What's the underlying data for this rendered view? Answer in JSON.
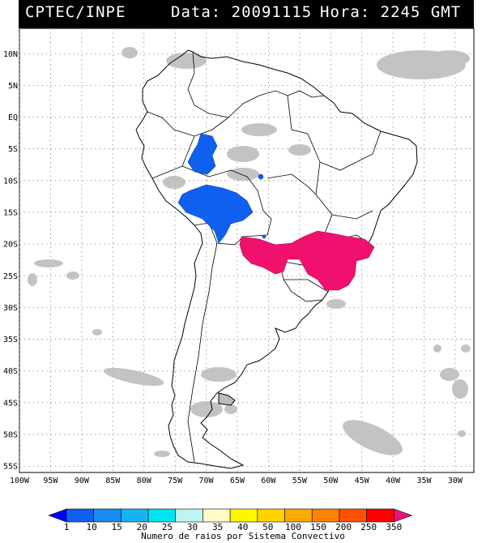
{
  "header": {
    "source": "CPTEC/INPE",
    "date_text": "Data: 20091115",
    "time_text": "Hora: 2245 GMT"
  },
  "map": {
    "lon_range": [
      -100,
      -27
    ],
    "lat_range": [
      -56,
      14
    ],
    "lat_labels": [
      "10N",
      "5N",
      "EQ",
      "5S",
      "10S",
      "15S",
      "20S",
      "25S",
      "30S",
      "35S",
      "40S",
      "45S",
      "50S",
      "55S"
    ],
    "lon_labels": [
      "100W",
      "95W",
      "90W",
      "85W",
      "80W",
      "75W",
      "70W",
      "65W",
      "60W",
      "55W",
      "50W",
      "45W",
      "40W",
      "35W",
      "30W"
    ],
    "cloud_color": "#bdbdbd",
    "systems": [
      {
        "name": "Peru-Bolivia convective system",
        "value_class": "10",
        "color": "#1060f0"
      },
      {
        "name": "Paraguay-Southeast Brazil convective system",
        "value_class": "350",
        "color": "#f0106e"
      }
    ]
  },
  "legend": {
    "ticks": [
      "1",
      "10",
      "15",
      "20",
      "25",
      "30",
      "35",
      "40",
      "50",
      "100",
      "150",
      "200",
      "250",
      "350"
    ],
    "colors": [
      "#0000ff",
      "#1060f0",
      "#1a8cf0",
      "#16b4f0",
      "#00e6f0",
      "#bff5f0",
      "#fffbc8",
      "#fff700",
      "#ffd200",
      "#ffaa00",
      "#ff8200",
      "#ff5000",
      "#ff0000",
      "#f0107a"
    ],
    "title": "Numero de raios por Sistema Convectivo"
  }
}
